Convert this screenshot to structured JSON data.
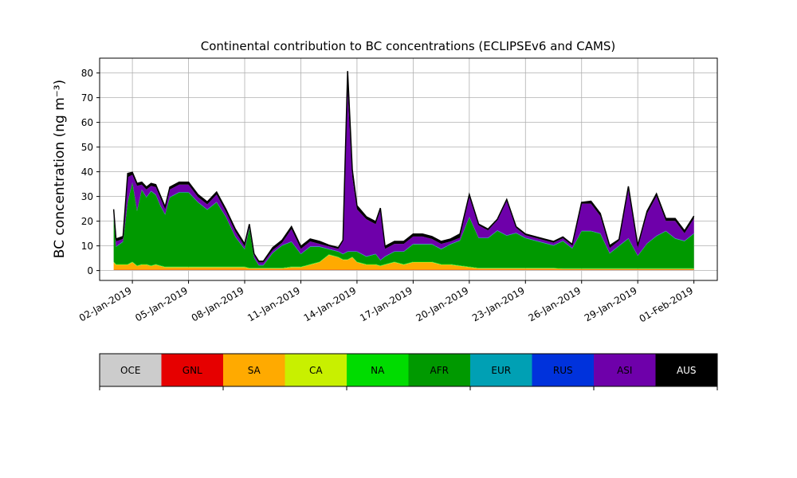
{
  "chart_data": {
    "type": "area",
    "stacked": true,
    "title": "Continental contribution to BC concentrations (ECLIPSEv6 and CAMS)",
    "ylabel": "BC concentration (ng m⁻³)",
    "xlabel": "",
    "x_axis_type": "date",
    "xlim": [
      "2018-12-31T06:00",
      "2019-02-02T06:00"
    ],
    "ylim": [
      -4,
      86
    ],
    "yticks": [
      0,
      10,
      20,
      30,
      40,
      50,
      60,
      70,
      80
    ],
    "xticks": [
      "02-Jan-2019",
      "05-Jan-2019",
      "08-Jan-2019",
      "11-Jan-2019",
      "14-Jan-2019",
      "17-Jan-2019",
      "20-Jan-2019",
      "23-Jan-2019",
      "26-Jan-2019",
      "29-Jan-2019",
      "01-Feb-2019"
    ],
    "grid": true,
    "legend_placement": "bottom colorbar",
    "x": [
      "2019-01-01T00:00",
      "2019-01-01T03:00",
      "2019-01-01T12:00",
      "2019-01-01T18:00",
      "2019-01-02T00:00",
      "2019-01-02T06:00",
      "2019-01-02T12:00",
      "2019-01-02T18:00",
      "2019-01-03T00:00",
      "2019-01-03T06:00",
      "2019-01-03T12:00",
      "2019-01-03T18:00",
      "2019-01-04T00:00",
      "2019-01-04T12:00",
      "2019-01-05T00:00",
      "2019-01-05T12:00",
      "2019-01-06T00:00",
      "2019-01-06T12:00",
      "2019-01-07T00:00",
      "2019-01-07T12:00",
      "2019-01-08T00:00",
      "2019-01-08T06:00",
      "2019-01-08T12:00",
      "2019-01-08T18:00",
      "2019-01-09T00:00",
      "2019-01-09T12:00",
      "2019-01-10T00:00",
      "2019-01-10T12:00",
      "2019-01-11T00:00",
      "2019-01-11T12:00",
      "2019-01-12T00:00",
      "2019-01-12T12:00",
      "2019-01-13T00:00",
      "2019-01-13T06:00",
      "2019-01-13T12:00",
      "2019-01-13T18:00",
      "2019-01-14T00:00",
      "2019-01-14T12:00",
      "2019-01-15T00:00",
      "2019-01-15T06:00",
      "2019-01-15T12:00",
      "2019-01-16T00:00",
      "2019-01-16T12:00",
      "2019-01-17T00:00",
      "2019-01-17T12:00",
      "2019-01-18T00:00",
      "2019-01-18T12:00",
      "2019-01-19T00:00",
      "2019-01-19T12:00",
      "2019-01-20T00:00",
      "2019-01-20T12:00",
      "2019-01-21T00:00",
      "2019-01-21T12:00",
      "2019-01-22T00:00",
      "2019-01-22T12:00",
      "2019-01-23T00:00",
      "2019-01-23T12:00",
      "2019-01-24T00:00",
      "2019-01-24T12:00",
      "2019-01-25T00:00",
      "2019-01-25T12:00",
      "2019-01-26T00:00",
      "2019-01-26T12:00",
      "2019-01-27T00:00",
      "2019-01-27T12:00",
      "2019-01-28T00:00",
      "2019-01-28T12:00",
      "2019-01-29T00:00",
      "2019-01-29T12:00",
      "2019-01-30T00:00",
      "2019-01-30T12:00",
      "2019-01-31T00:00",
      "2019-01-31T12:00",
      "2019-02-01T00:00"
    ],
    "series": [
      {
        "name": "OCE",
        "color": "#cccccc",
        "values": [
          0.2,
          0.2,
          0.2,
          0.2,
          0.2,
          0.2,
          0.2,
          0.2,
          0.2,
          0.2,
          0.2,
          0.2,
          0.2,
          0.2,
          0.2,
          0.2,
          0.2,
          0.2,
          0.2,
          0.2,
          0.2,
          0.2,
          0.2,
          0.2,
          0.2,
          0.2,
          0.2,
          0.2,
          0.2,
          0.2,
          0.2,
          0.2,
          0.2,
          0.2,
          0.2,
          0.2,
          0.2,
          0.2,
          0.2,
          0.2,
          0.2,
          0.2,
          0.2,
          0.2,
          0.2,
          0.2,
          0.2,
          0.2,
          0.2,
          0.2,
          0.2,
          0.2,
          0.2,
          0.2,
          0.2,
          0.2,
          0.2,
          0.2,
          0.2,
          0.2,
          0.2,
          0.2,
          0.2,
          0.2,
          0.2,
          0.2,
          0.2,
          0.2,
          0.2,
          0.2,
          0.2,
          0.2,
          0.2,
          0.2
        ]
      },
      {
        "name": "GNL",
        "color": "#e60000",
        "values": [
          0.1,
          0.1,
          0.1,
          0.1,
          0.1,
          0.1,
          0.1,
          0.1,
          0.1,
          0.1,
          0.1,
          0.1,
          0.1,
          0.1,
          0.1,
          0.1,
          0.1,
          0.1,
          0.1,
          0.1,
          0.1,
          0.1,
          0.1,
          0.1,
          0.1,
          0.1,
          0.1,
          0.1,
          0.1,
          0.1,
          0.1,
          0.1,
          0.1,
          0.1,
          0.1,
          0.1,
          0.1,
          0.1,
          0.1,
          0.1,
          0.1,
          0.1,
          0.1,
          0.1,
          0.1,
          0.1,
          0.1,
          0.1,
          0.1,
          0.1,
          0.1,
          0.1,
          0.1,
          0.1,
          0.1,
          0.1,
          0.1,
          0.1,
          0.1,
          0.1,
          0.1,
          0.1,
          0.1,
          0.1,
          0.1,
          0.1,
          0.1,
          0.1,
          0.1,
          0.1,
          0.1,
          0.1,
          0.1,
          0.1
        ]
      },
      {
        "name": "SA",
        "color": "#ffaa00",
        "values": [
          3,
          2,
          2,
          2,
          3,
          1.5,
          2,
          2,
          1.5,
          2,
          1.5,
          1,
          1,
          1,
          1,
          1,
          1,
          1,
          1,
          1,
          1,
          0.5,
          0.5,
          0.5,
          0.5,
          0.5,
          0.5,
          1,
          1,
          2,
          3,
          6,
          5,
          4,
          4,
          5,
          3,
          2,
          2,
          1.5,
          2,
          3,
          2,
          3,
          3,
          3,
          2,
          2,
          1.5,
          1,
          0.5,
          0.5,
          0.5,
          0.5,
          0.5,
          0.5,
          0.5,
          0.5,
          0.5,
          0.3,
          0.3,
          0.3,
          0.3,
          0.3,
          0.3,
          0.3,
          0.3,
          0.3,
          0.3,
          0.3,
          0.3,
          0.3,
          0.3,
          0.3
        ]
      },
      {
        "name": "CA",
        "color": "#c8f000",
        "values": [
          0.1,
          0.1,
          0.1,
          0.1,
          0.1,
          0.1,
          0.1,
          0.1,
          0.1,
          0.1,
          0.1,
          0.1,
          0.1,
          0.1,
          0.1,
          0.1,
          0.1,
          0.1,
          0.1,
          0.1,
          0.1,
          0.1,
          0.1,
          0.1,
          0.1,
          0.1,
          0.1,
          0.1,
          0.1,
          0.1,
          0.1,
          0.1,
          0.1,
          0.1,
          0.1,
          0.1,
          0.1,
          0.1,
          0.1,
          0.1,
          0.1,
          0.1,
          0.1,
          0.1,
          0.1,
          0.1,
          0.1,
          0.1,
          0.1,
          0.1,
          0.1,
          0.1,
          0.1,
          0.1,
          0.1,
          0.1,
          0.1,
          0.1,
          0.1,
          0.1,
          0.1,
          0.1,
          0.1,
          0.1,
          0.1,
          0.1,
          0.1,
          0.1,
          0.1,
          0.1,
          0.1,
          0.1,
          0.1,
          0.1
        ]
      },
      {
        "name": "NA",
        "color": "#00dc00",
        "values": [
          0.2,
          0.2,
          0.2,
          0.2,
          0.2,
          0.2,
          0.2,
          0.2,
          0.2,
          0.2,
          0.2,
          0.2,
          0.2,
          0.2,
          0.2,
          0.2,
          0.2,
          0.2,
          0.2,
          0.2,
          0.2,
          0.2,
          0.2,
          0.2,
          0.2,
          0.2,
          0.2,
          0.2,
          0.2,
          0.2,
          0.2,
          0.2,
          0.2,
          0.2,
          0.2,
          0.2,
          0.2,
          0.2,
          0.2,
          0.2,
          0.2,
          0.2,
          0.2,
          0.2,
          0.2,
          0.2,
          0.2,
          0.2,
          0.2,
          0.2,
          0.2,
          0.2,
          0.2,
          0.2,
          0.2,
          0.2,
          0.2,
          0.2,
          0.2,
          0.2,
          0.2,
          0.2,
          0.2,
          0.2,
          0.2,
          0.2,
          0.2,
          0.2,
          0.2,
          0.2,
          0.2,
          0.2,
          0.2,
          0.2
        ]
      },
      {
        "name": "AFR",
        "color": "#009900",
        "values": [
          18,
          7,
          9,
          25,
          32,
          22,
          30,
          27,
          30,
          28,
          24,
          21,
          28,
          30,
          30,
          26,
          23,
          26,
          20,
          12,
          7,
          16,
          4,
          1,
          1,
          6,
          9,
          10,
          5,
          7,
          6,
          2,
          2,
          2,
          3,
          2,
          4,
          3,
          4,
          2,
          3,
          4,
          5,
          7,
          7,
          7,
          6,
          8,
          10,
          20,
          12,
          12,
          15,
          13,
          14,
          12,
          11,
          10,
          9,
          11,
          8,
          15,
          15,
          14,
          6,
          9,
          12,
          5,
          10,
          13,
          15,
          12,
          11,
          14
        ]
      },
      {
        "name": "EUR",
        "color": "#00a0b4",
        "values": [
          0.1,
          0.1,
          0.1,
          0.1,
          0.1,
          0.1,
          0.1,
          0.1,
          0.1,
          0.1,
          0.1,
          0.1,
          0.1,
          0.1,
          0.1,
          0.1,
          0.1,
          0.1,
          0.1,
          0.1,
          0.1,
          0.1,
          0.1,
          0.1,
          0.1,
          0.1,
          0.1,
          0.1,
          0.1,
          0.1,
          0.1,
          0.1,
          0.1,
          0.1,
          0.1,
          0.1,
          0.1,
          0.1,
          0.1,
          0.1,
          0.1,
          0.1,
          0.1,
          0.1,
          0.1,
          0.1,
          0.1,
          0.1,
          0.1,
          0.1,
          0.1,
          0.1,
          0.1,
          0.1,
          0.1,
          0.1,
          0.1,
          0.1,
          0.1,
          0.1,
          0.1,
          0.1,
          0.1,
          0.1,
          0.1,
          0.1,
          0.1,
          0.1,
          0.1,
          0.1,
          0.1,
          0.1,
          0.1,
          0.1
        ]
      },
      {
        "name": "RUS",
        "color": "#0032dc",
        "values": [
          0.1,
          0.1,
          0.1,
          0.1,
          0.1,
          0.1,
          0.1,
          0.1,
          0.1,
          0.1,
          0.1,
          0.1,
          0.1,
          0.1,
          0.1,
          0.1,
          0.1,
          0.1,
          0.1,
          0.1,
          0.1,
          0.1,
          0.1,
          0.1,
          0.1,
          0.1,
          0.1,
          0.1,
          0.1,
          0.1,
          0.1,
          0.1,
          0.1,
          0.1,
          0.1,
          0.1,
          0.1,
          0.1,
          0.1,
          0.1,
          0.1,
          0.1,
          0.1,
          0.1,
          0.1,
          0.1,
          0.1,
          0.1,
          0.1,
          0.1,
          0.1,
          0.1,
          0.1,
          0.1,
          0.1,
          0.1,
          0.1,
          0.1,
          0.1,
          0.1,
          0.1,
          0.1,
          0.1,
          0.1,
          0.1,
          0.1,
          0.1,
          0.1,
          0.1,
          0.1,
          0.1,
          0.1,
          0.1,
          0.1
        ]
      },
      {
        "name": "ASI",
        "color": "#6e00aa",
        "values": [
          2,
          2,
          1,
          10,
          3,
          10,
          2,
          3,
          2,
          3,
          3,
          2,
          3,
          3,
          3,
          2,
          2,
          3,
          2,
          2,
          1,
          1,
          1,
          1,
          1,
          1,
          1,
          5,
          2,
          2,
          1,
          1,
          1,
          5,
          65,
          30,
          17,
          15,
          12,
          20,
          3,
          3,
          3,
          3,
          3,
          2,
          2,
          1,
          1,
          8,
          5,
          3,
          4,
          14,
          2,
          1,
          1,
          1,
          1,
          1,
          1,
          11,
          11,
          7,
          2,
          2,
          20,
          3,
          12,
          16,
          4,
          7,
          3,
          6
        ]
      },
      {
        "name": "AUS",
        "color": "#000000",
        "values": [
          1,
          1,
          1,
          1.5,
          1,
          1,
          1,
          1,
          1,
          1,
          1,
          1,
          1,
          1,
          1,
          1,
          1,
          1,
          1,
          1,
          1,
          0.5,
          0.5,
          0.5,
          0.5,
          1,
          1,
          1,
          1,
          1,
          1,
          0.5,
          0.5,
          0.5,
          8,
          3,
          1.5,
          1,
          1,
          1,
          1,
          1,
          1,
          1,
          1,
          1,
          1,
          1,
          1.5,
          1,
          0.5,
          0.5,
          0.5,
          0.5,
          0.5,
          0.5,
          0.5,
          0.5,
          0.5,
          0.5,
          0.5,
          0.5,
          1,
          1,
          1,
          0.5,
          1,
          1,
          1,
          1,
          1,
          1,
          1,
          1
        ]
      }
    ]
  }
}
